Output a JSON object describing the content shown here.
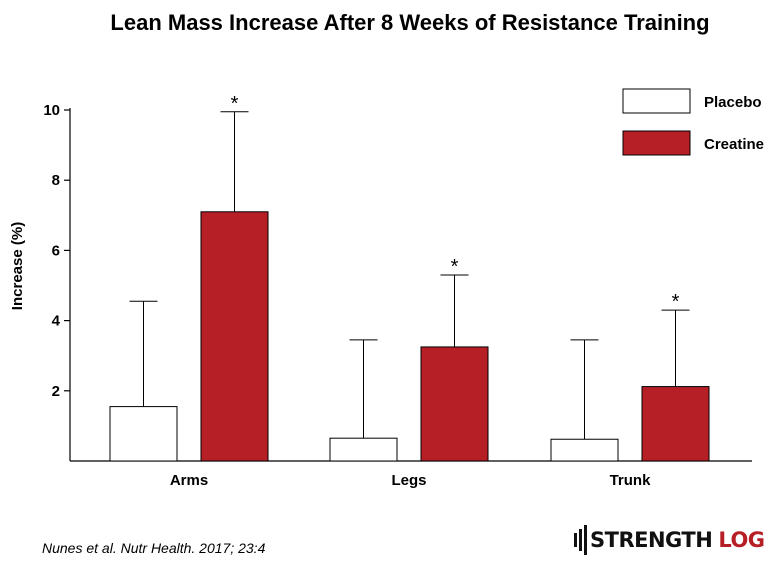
{
  "chart_data": {
    "type": "bar",
    "title": "Lean Mass Increase After 8 Weeks of Resistance Training",
    "ylabel": "Increase (%)",
    "xlabel": "",
    "ylim": [
      0,
      10
    ],
    "yticks": [
      2,
      4,
      6,
      8,
      10
    ],
    "categories": [
      "Arms",
      "Legs",
      "Trunk"
    ],
    "series": [
      {
        "name": "Placebo",
        "color": "#ffffff",
        "values": [
          1.55,
          0.65,
          0.62
        ],
        "error_upper": [
          4.55,
          3.45,
          3.45
        ]
      },
      {
        "name": "Creatine",
        "color": "#b71f27",
        "values": [
          7.1,
          3.25,
          2.12
        ],
        "error_upper": [
          9.95,
          5.3,
          4.3
        ]
      }
    ],
    "significance_marker": "*",
    "significant_series": "Creatine",
    "legend_position": "top-right",
    "grid": false
  },
  "footer": {
    "source": "Nunes et al. Nutr Health. 2017; 23:4",
    "logo_text_1": "STRENGTH",
    "logo_text_2": "LOG"
  }
}
